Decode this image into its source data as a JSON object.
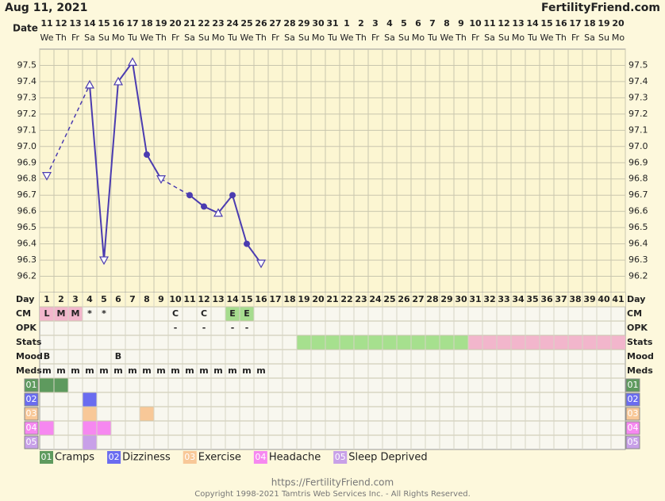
{
  "header": {
    "date": "Aug 11, 2021",
    "site": "FertilityFriend.com",
    "date_label": "Date"
  },
  "chart_data": {
    "type": "line",
    "x_label": "Day",
    "categories": [
      1,
      2,
      3,
      4,
      5,
      6,
      7,
      8,
      9,
      10,
      11,
      12,
      13,
      14,
      15,
      16,
      17,
      18,
      19,
      20,
      21,
      22,
      23,
      24,
      25,
      26,
      27,
      28,
      29,
      30,
      31,
      32,
      33,
      34,
      35,
      36,
      37,
      38,
      39,
      40,
      41
    ],
    "dates": [
      11,
      12,
      13,
      14,
      15,
      16,
      17,
      18,
      19,
      20,
      21,
      22,
      23,
      24,
      25,
      26,
      27,
      28,
      29,
      30,
      31,
      1,
      2,
      3,
      4,
      5,
      6,
      7,
      8,
      9,
      10,
      11,
      12,
      13,
      14,
      15,
      16,
      17,
      18,
      19,
      20
    ],
    "weekdays": [
      "We",
      "Th",
      "Fr",
      "Sa",
      "Su",
      "Mo",
      "Tu",
      "We",
      "Th",
      "Fr",
      "Sa",
      "Su",
      "Mo",
      "Tu",
      "We",
      "Th",
      "Fr",
      "Sa",
      "Su",
      "Mo",
      "Tu",
      "We",
      "Th",
      "Fr",
      "Sa",
      "Su",
      "Mo",
      "Tu",
      "We",
      "Th",
      "Fr",
      "Sa",
      "Su",
      "Mo",
      "Tu",
      "We",
      "Th",
      "Fr",
      "Sa",
      "Su",
      "Mo"
    ],
    "values": [
      96.82,
      null,
      null,
      97.38,
      96.3,
      97.4,
      97.52,
      96.95,
      96.8,
      null,
      96.7,
      96.63,
      96.59,
      96.7,
      96.4,
      96.28,
      null,
      null,
      null,
      null,
      null,
      null,
      null,
      null,
      null,
      null,
      null,
      null,
      null,
      null,
      null,
      null,
      null,
      null,
      null,
      null,
      null,
      null,
      null,
      null,
      null
    ],
    "markers": [
      "down",
      null,
      null,
      "up",
      "down",
      "up",
      "up",
      "dot",
      "down",
      null,
      "dot",
      "dot",
      "up",
      "dot",
      "dot",
      "down",
      null,
      null,
      null,
      null,
      null,
      null,
      null,
      null,
      null,
      null,
      null,
      null,
      null,
      null,
      null,
      null,
      null,
      null,
      null,
      null,
      null,
      null,
      null,
      null,
      null
    ],
    "color": "#4b3cb0",
    "ylim": [
      96.1,
      97.6
    ],
    "yticks": [
      96.2,
      96.3,
      96.4,
      96.5,
      96.6,
      96.7,
      96.8,
      96.9,
      {
        "value": 97,
        "label": "97.0"
      },
      97.1,
      97.2,
      97.3,
      97.4,
      97.5
    ],
    "grid": true
  },
  "rows": [
    {
      "label": "CM",
      "cells": {
        "1": "L",
        "2": "M",
        "3": "M",
        "4": "*",
        "5": "*",
        "10": "C",
        "12": "C",
        "14": "E",
        "15": "E"
      },
      "fills": {
        "1": "#f2b6cc",
        "2": "#f2b6cc",
        "3": "#f2b6cc",
        "14": "#a6dc8e",
        "15": "#a6dc8e"
      }
    },
    {
      "label": "OPK",
      "cells": {
        "10": "-",
        "12": "-",
        "14": "-",
        "15": "-"
      }
    },
    {
      "label": "Stats",
      "spans": [
        {
          "start": 19,
          "end": 30,
          "color": "#a6e08e"
        },
        {
          "start": 31,
          "end": 41,
          "color": "#f2b6cc"
        }
      ]
    },
    {
      "label": "Mood",
      "cells": {
        "1": "B",
        "6": "B"
      }
    },
    {
      "label": "Meds",
      "cells": {
        "1": "m",
        "2": "m",
        "3": "m",
        "4": "m",
        "5": "m",
        "6": "m",
        "7": "m",
        "8": "m",
        "9": "m",
        "10": "m",
        "11": "m",
        "12": "m",
        "13": "m",
        "14": "m",
        "15": "m",
        "16": "m"
      }
    }
  ],
  "symptoms": [
    {
      "code": "01",
      "name": "Cramps",
      "color": "#5e9a5e",
      "days": [
        1,
        2
      ]
    },
    {
      "code": "02",
      "name": "Dizziness",
      "color": "#6a6cf0",
      "days": [
        4
      ]
    },
    {
      "code": "03",
      "name": "Exercise",
      "color": "#f8c898",
      "days": [
        4,
        8
      ]
    },
    {
      "code": "04",
      "name": "Headache",
      "color": "#f688f0",
      "days": [
        1,
        4,
        5
      ]
    },
    {
      "code": "05",
      "name": "Sleep Deprived",
      "color": "#c8a0e8",
      "days": [
        4
      ]
    }
  ],
  "footer": {
    "url": "https://FertilityFriend.com",
    "copyright": "Copyright 1998-2021 Tamtris Web Services Inc. - All Rights Reserved."
  }
}
